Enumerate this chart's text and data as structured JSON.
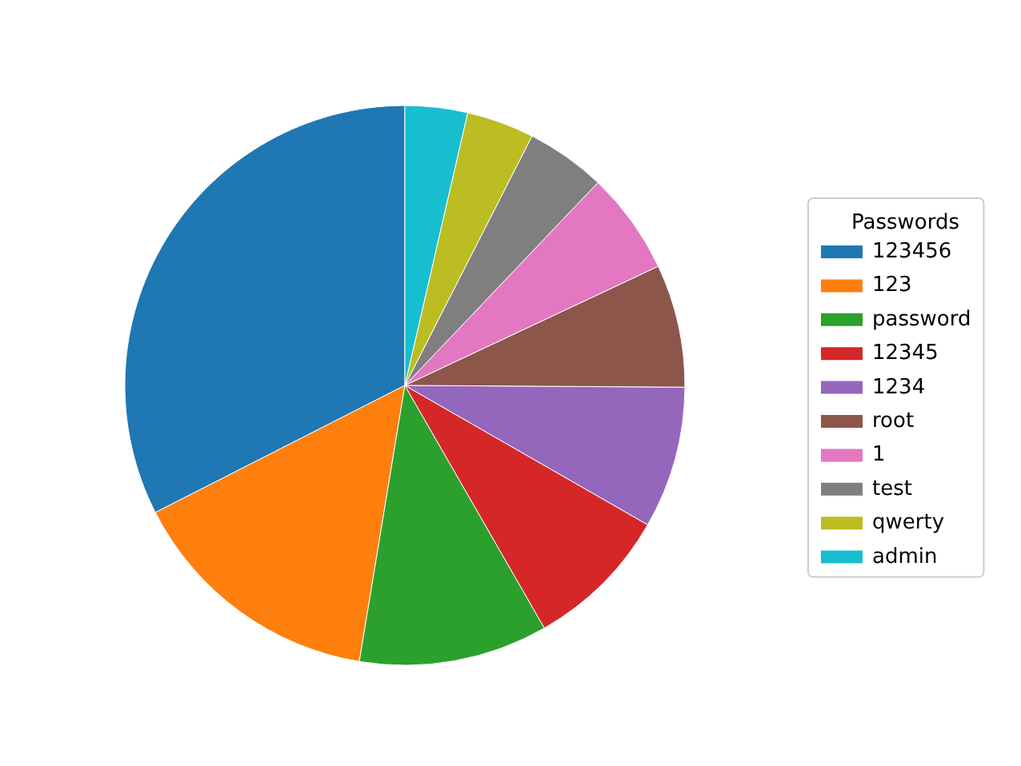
{
  "chart_data": {
    "type": "pie",
    "legend_title": "Passwords",
    "legend": "right",
    "categories": [
      "123456",
      "123",
      "password",
      "12345",
      "1234",
      "root",
      "1",
      "test",
      "qwerty",
      "admin"
    ],
    "values": [
      32.5,
      14.9,
      10.9,
      8.4,
      8.2,
      7.1,
      5.9,
      4.6,
      3.9,
      3.6
    ],
    "colors": [
      "#1f77b4",
      "#ff7f0e",
      "#2ca02c",
      "#d62728",
      "#9467bd",
      "#8c564b",
      "#e377c2",
      "#7f7f7f",
      "#bcbd22",
      "#17becf"
    ]
  }
}
